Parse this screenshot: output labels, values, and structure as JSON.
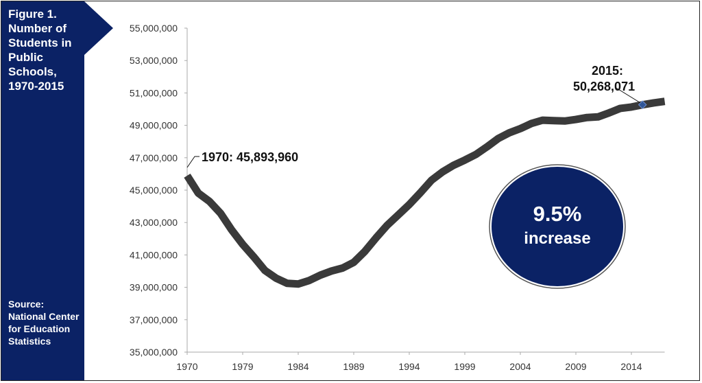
{
  "sidebar": {
    "title": "Figure 1. Number of Students in Public Schools, 1970-2015",
    "source": "Source: National Center for Education Statistics"
  },
  "colors": {
    "panel": "#0b2265",
    "line": "#3a3a3a",
    "marker": "#2f5597"
  },
  "chart_data": {
    "type": "line",
    "title": "Figure 1. Number of Students in Public Schools, 1970-2015",
    "xlabel": "",
    "ylabel": "",
    "ylim": [
      35000000,
      55000000
    ],
    "yticks": [
      "35,000,000",
      "37,000,000",
      "39,000,000",
      "41,000,000",
      "43,000,000",
      "45,000,000",
      "47,000,000",
      "49,000,000",
      "51,000,000",
      "53,000,000",
      "55,000,000"
    ],
    "xtick_labels": [
      "1970",
      "1979",
      "1984",
      "1989",
      "1994",
      "1999",
      "2004",
      "2009",
      "2014"
    ],
    "grid": false,
    "categories": [
      1970,
      1975,
      1976,
      1977,
      1978,
      1979,
      1980,
      1981,
      1982,
      1983,
      1984,
      1985,
      1986,
      1987,
      1988,
      1989,
      1990,
      1991,
      1992,
      1993,
      1994,
      1995,
      1996,
      1997,
      1998,
      1999,
      2000,
      2001,
      2002,
      2003,
      2004,
      2005,
      2006,
      2007,
      2008,
      2009,
      2010,
      2011,
      2012,
      2013,
      2014,
      2015,
      2016,
      2017
    ],
    "values": [
      45893960,
      44819000,
      44311000,
      43577000,
      42551000,
      41651000,
      40877000,
      40044000,
      39566000,
      39252000,
      39208000,
      39422000,
      39753000,
      40008000,
      40189000,
      40543000,
      41217000,
      42047000,
      42823000,
      43465000,
      44111000,
      44840000,
      45611000,
      46127000,
      46539000,
      46857000,
      47204000,
      47672000,
      48183000,
      48540000,
      48795000,
      49113000,
      49316000,
      49293000,
      49266000,
      49361000,
      49484000,
      49522000,
      49771000,
      50045000,
      50132000,
      50268071,
      50385000,
      50477000
    ],
    "annotations": {
      "start": "1970: 45,893,960",
      "end_year": "2015:",
      "end_value": "50,268,071",
      "circle_pct": "9.5%",
      "circle_text": "increase"
    }
  }
}
